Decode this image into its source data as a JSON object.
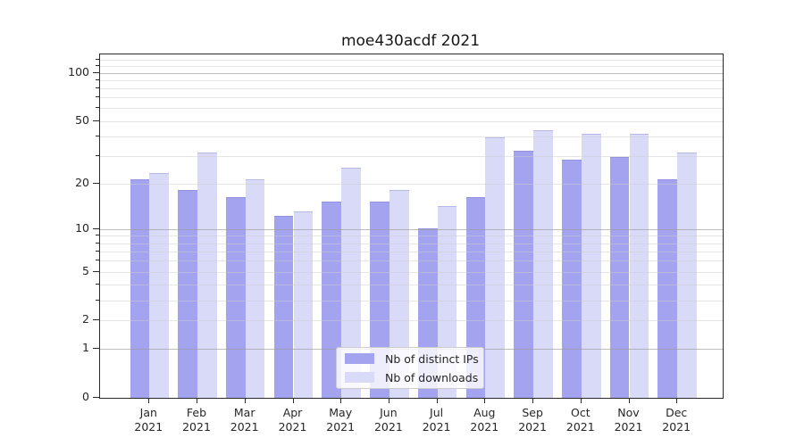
{
  "chart_data": {
    "type": "bar",
    "title": "moe430acdf 2021",
    "categories": [
      "Jan",
      "Feb",
      "Mar",
      "Apr",
      "May",
      "Jun",
      "Jul",
      "Aug",
      "Sep",
      "Oct",
      "Nov",
      "Dec"
    ],
    "x_year": "2021",
    "series": [
      {
        "name": "Nb of distinct IPs",
        "color": "#a3a3ef",
        "values": [
          21,
          18,
          16,
          12,
          15,
          15,
          10,
          16,
          32,
          28,
          29,
          21
        ]
      },
      {
        "name": "Nb of downloads",
        "color": "#d9d9f8",
        "values": [
          23,
          31,
          21,
          13,
          25,
          18,
          14,
          39,
          43,
          41,
          41,
          31
        ]
      }
    ],
    "y_scale": "log1p",
    "y_ticks": [
      0,
      1,
      2,
      5,
      10,
      20,
      50,
      100
    ],
    "y_major_gridlines": [
      1,
      10,
      100
    ],
    "y_minor_gridlines": [
      2,
      3,
      4,
      5,
      6,
      7,
      8,
      9,
      20,
      30,
      40,
      50,
      60,
      70,
      80,
      90,
      110,
      120
    ],
    "y_max": 130,
    "xlabel": "",
    "ylabel": "",
    "grid": true,
    "legend_position": "lower center"
  }
}
